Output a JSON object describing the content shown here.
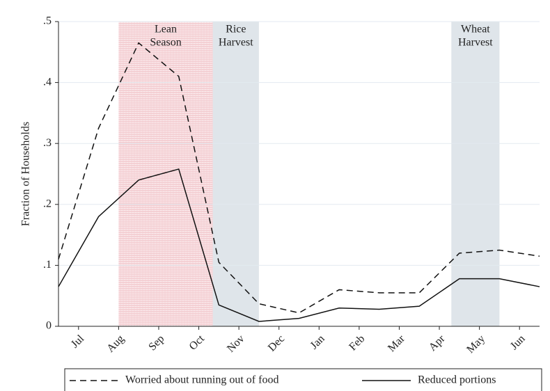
{
  "chart_data": {
    "type": "line",
    "y_label": "Fraction of Households",
    "x": [
      0.5,
      1.5,
      2.5,
      3.5,
      4.5,
      5.5,
      6.5,
      7.5,
      8.5,
      9.5,
      10.5,
      11.5,
      12.5
    ],
    "series": [
      {
        "name": "Worried about running out of food",
        "color": "#111111",
        "dash": true,
        "values": [
          0.11,
          0.325,
          0.465,
          0.41,
          0.105,
          0.037,
          0.022,
          0.06,
          0.055,
          0.055,
          0.12,
          0.125,
          0.115
        ]
      },
      {
        "name": "Reduced portions",
        "color": "#111111",
        "dash": false,
        "values": [
          0.065,
          0.18,
          0.24,
          0.258,
          0.035,
          0.008,
          0.013,
          0.03,
          0.028,
          0.033,
          0.078,
          0.078,
          0.065
        ]
      }
    ],
    "shaded_regions": [
      {
        "lines": [
          "Lean",
          "Season"
        ],
        "xrange": [
          2.0,
          4.35
        ],
        "color": "#f6d9dc",
        "hatch": "#e9a3ab"
      },
      {
        "lines": [
          "Rice",
          "Harvest"
        ],
        "xrange": [
          4.35,
          5.5
        ],
        "color": "#dfe5ea"
      },
      {
        "lines": [
          "Wheat",
          "Harvest"
        ],
        "xrange": [
          10.3,
          11.5
        ],
        "color": "#dfe5ea"
      }
    ],
    "xlim": [
      0.5,
      12.5
    ],
    "xticks": [
      {
        "value": 1,
        "label": "Jul"
      },
      {
        "value": 2,
        "label": "Aug"
      },
      {
        "value": 3,
        "label": "Sep"
      },
      {
        "value": 4,
        "label": "Oct"
      },
      {
        "value": 5,
        "label": "Nov"
      },
      {
        "value": 6,
        "label": "Dec"
      },
      {
        "value": 7,
        "label": "Jan"
      },
      {
        "value": 8,
        "label": "Feb"
      },
      {
        "value": 9,
        "label": "Mar"
      },
      {
        "value": 10,
        "label": "Apr"
      },
      {
        "value": 11,
        "label": "May"
      },
      {
        "value": 12,
        "label": "Jun"
      }
    ],
    "ylim": [
      0,
      0.5
    ],
    "yticks": [
      0,
      {
        "value": 0.1,
        "label": ".1"
      },
      {
        "value": 0.2,
        "label": ".2"
      },
      {
        "value": 0.3,
        "label": ".3"
      },
      {
        "value": 0.4,
        "label": ".4"
      },
      {
        "value": 0.5,
        "label": ".5"
      }
    ],
    "grid": true
  }
}
